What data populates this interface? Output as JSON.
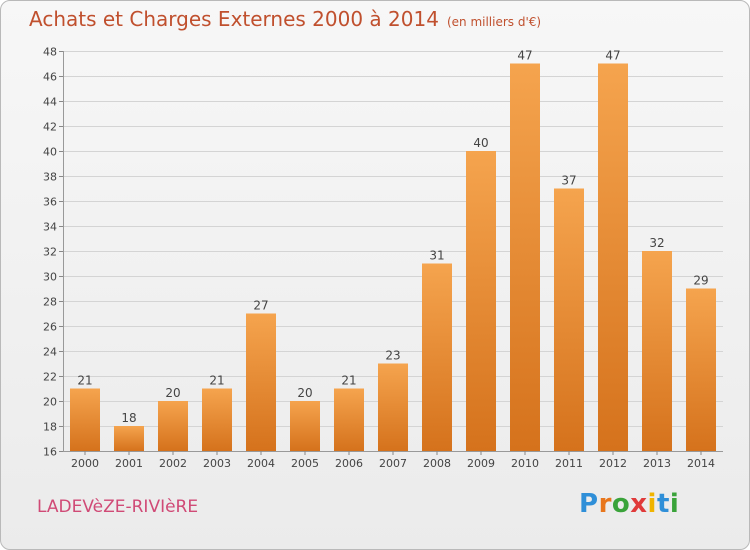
{
  "header": {
    "title": "Achats et Charges Externes 2000 à 2014",
    "unit": "(en milliers d'€)"
  },
  "footer": {
    "commune": "LADEVèZE-RIVIèRE",
    "logo": {
      "letters": [
        "P",
        "r",
        "o",
        "x",
        "i",
        "t",
        "i"
      ],
      "colors": [
        "#2f8fd8",
        "#e8761c",
        "#3aa33a",
        "#e03a3a",
        "#f0b400",
        "#2f8fd8",
        "#3aa33a"
      ]
    }
  },
  "colors": {
    "bar_light": "#f5a44e",
    "bar_dark": "#d5721c",
    "text": "#444444",
    "grid": "#d4d4d4"
  },
  "chart_data": {
    "type": "bar",
    "title": "Achats et Charges Externes 2000 à 2014",
    "subtitle": "(en milliers d'€)",
    "categories": [
      "2000",
      "2001",
      "2002",
      "2003",
      "2004",
      "2005",
      "2006",
      "2007",
      "2008",
      "2009",
      "2010",
      "2011",
      "2012",
      "2013",
      "2014"
    ],
    "values": [
      21,
      18,
      20,
      21,
      27,
      20,
      21,
      23,
      31,
      40,
      47,
      37,
      47,
      32,
      29
    ],
    "ylim": [
      16,
      48
    ],
    "yticks": [
      16,
      18,
      20,
      22,
      24,
      26,
      28,
      30,
      32,
      34,
      36,
      38,
      40,
      42,
      44,
      46,
      48
    ],
    "grid": true,
    "data_labels": true
  }
}
